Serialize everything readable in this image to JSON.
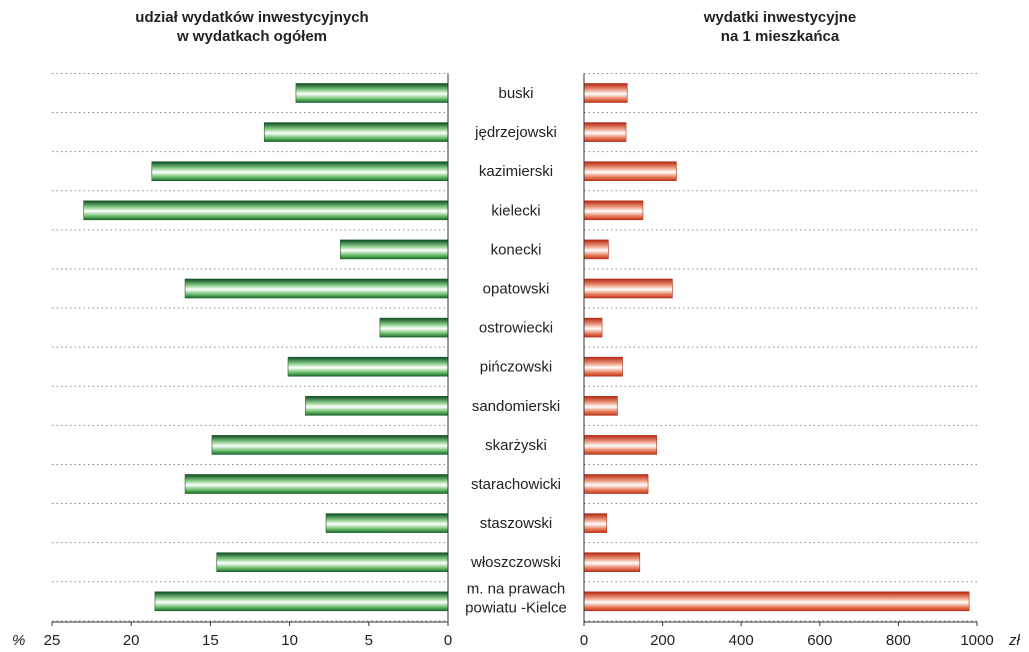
{
  "chart_data": [
    {
      "type": "bar",
      "orientation": "horizontal",
      "title": [
        "udział wydatków inwestycyjnych",
        "w wydatkach ogółem"
      ],
      "unit_label": "%",
      "direction": "reversed",
      "xlim": [
        0,
        25
      ],
      "ticks": [
        25,
        20,
        15,
        10,
        5,
        0
      ],
      "grid": true,
      "color": "#2e7d32",
      "categories": [
        "buski",
        "jędrzejowski",
        "kazimierski",
        "kielecki",
        "konecki",
        "opatowski",
        "ostrowiecki",
        "pińczowski",
        "sandomierski",
        "skarżyski",
        "starachowicki",
        "staszowski",
        "włoszczowski",
        [
          "m. na prawach",
          "powiatu -Kielce"
        ]
      ],
      "values": [
        9.6,
        11.6,
        18.7,
        23.0,
        6.8,
        16.6,
        4.3,
        10.1,
        9.0,
        14.9,
        16.6,
        7.7,
        14.6,
        18.5
      ]
    },
    {
      "type": "bar",
      "orientation": "horizontal",
      "title": [
        "wydatki inwestycyjne",
        "na 1 mieszkańca"
      ],
      "unit_label": "zł",
      "direction": "normal",
      "xlim": [
        0,
        1000
      ],
      "ticks": [
        0,
        200,
        400,
        600,
        800,
        1000
      ],
      "grid": true,
      "color": "#d84a2a",
      "categories": [
        "buski",
        "jędrzejowski",
        "kazimierski",
        "kielecki",
        "konecki",
        "opatowski",
        "ostrowiecki",
        "pińczowski",
        "sandomierski",
        "skarżyski",
        "starachowicki",
        "staszowski",
        "włoszczowski",
        [
          "m. na prawach",
          "powiatu -Kielce"
        ]
      ],
      "values": [
        110,
        107,
        235,
        150,
        62,
        225,
        46,
        98,
        85,
        185,
        163,
        58,
        142,
        980
      ]
    }
  ]
}
